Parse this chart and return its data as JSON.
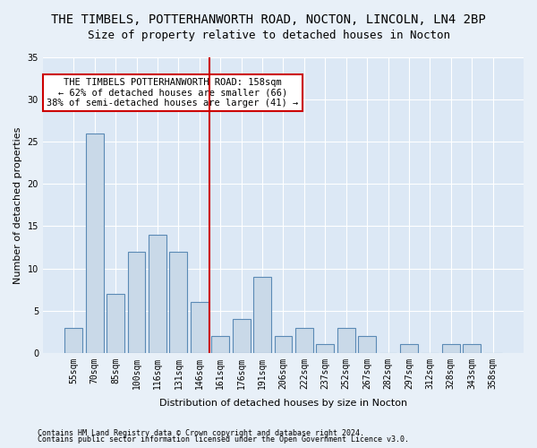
{
  "title": "THE TIMBELS, POTTERHANWORTH ROAD, NOCTON, LINCOLN, LN4 2BP",
  "subtitle": "Size of property relative to detached houses in Nocton",
  "xlabel": "Distribution of detached houses by size in Nocton",
  "ylabel": "Number of detached properties",
  "categories": [
    "55sqm",
    "70sqm",
    "85sqm",
    "100sqm",
    "116sqm",
    "131sqm",
    "146sqm",
    "161sqm",
    "176sqm",
    "191sqm",
    "206sqm",
    "222sqm",
    "237sqm",
    "252sqm",
    "267sqm",
    "282sqm",
    "297sqm",
    "312sqm",
    "328sqm",
    "343sqm",
    "358sqm"
  ],
  "values": [
    3,
    26,
    7,
    12,
    14,
    12,
    6,
    2,
    4,
    9,
    2,
    3,
    1,
    3,
    2,
    0,
    1,
    0,
    1,
    1,
    0
  ],
  "bar_color": "#c9d9e8",
  "bar_edge_color": "#5b8ab5",
  "bar_linewidth": 0.8,
  "vline_x": 6.5,
  "vline_color": "#cc0000",
  "ylim": [
    0,
    35
  ],
  "yticks": [
    0,
    5,
    10,
    15,
    20,
    25,
    30,
    35
  ],
  "annotation_title": "THE TIMBELS POTTERHANWORTH ROAD: 158sqm",
  "annotation_line2": "← 62% of detached houses are smaller (66)",
  "annotation_line3": "38% of semi-detached houses are larger (41) →",
  "box_color": "#cc0000",
  "footer1": "Contains HM Land Registry data © Crown copyright and database right 2024.",
  "footer2": "Contains public sector information licensed under the Open Government Licence v3.0.",
  "bg_color": "#e8f0f8",
  "plot_bg_color": "#dce8f5",
  "grid_color": "#ffffff",
  "title_fontsize": 10,
  "subtitle_fontsize": 9,
  "axis_label_fontsize": 8,
  "tick_fontsize": 7,
  "annotation_fontsize": 7.5
}
